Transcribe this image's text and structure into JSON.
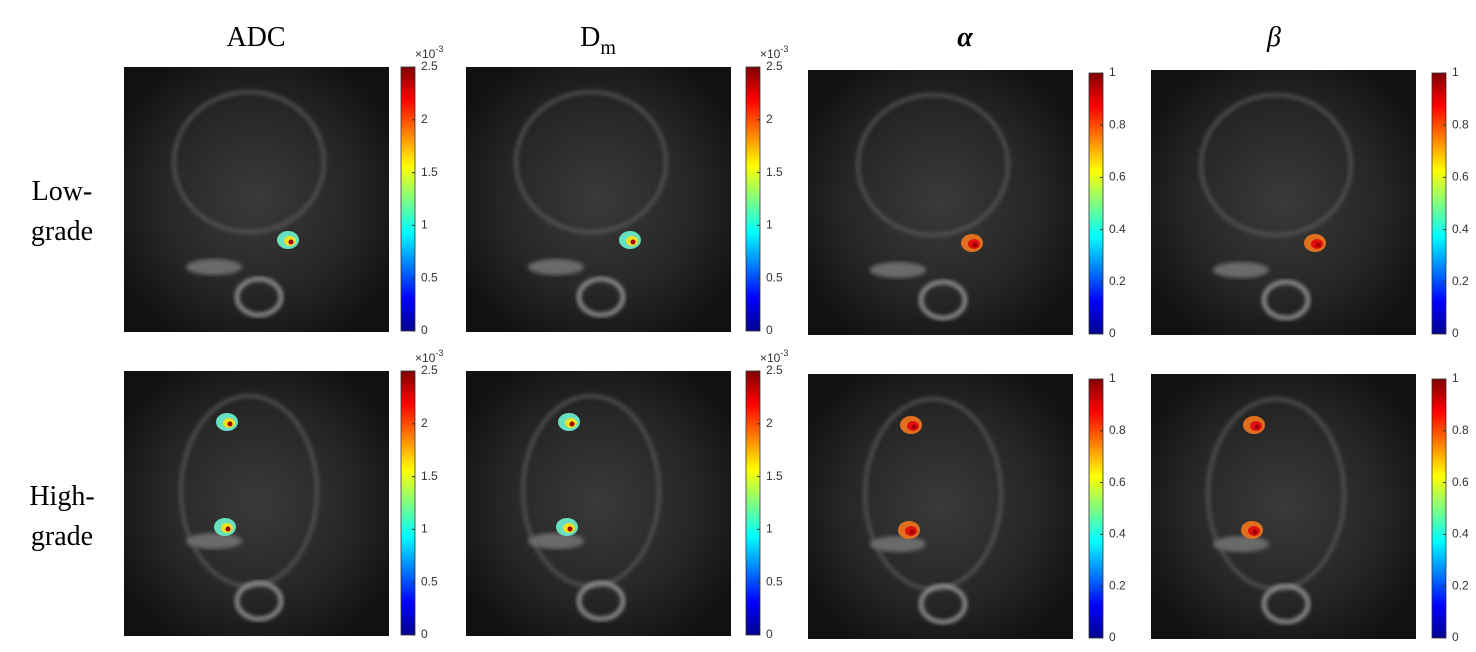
{
  "columns": [
    {
      "label": "ADC",
      "colorbar": {
        "lim": [
          0,
          2.5
        ],
        "ticks": [
          0,
          0.5,
          1,
          1.5,
          2,
          2.5
        ],
        "multiplier": {
          "base": "×10",
          "exponent": "-3"
        }
      }
    },
    {
      "label": "D",
      "subscript": "m",
      "colorbar": {
        "lim": [
          0,
          2.5
        ],
        "ticks": [
          0,
          0.5,
          1,
          1.5,
          2,
          2.5
        ],
        "multiplier": {
          "base": "×10",
          "exponent": "-3"
        }
      }
    },
    {
      "label": "α",
      "colorbar": {
        "lim": [
          0,
          1
        ],
        "ticks": [
          0,
          0.2,
          0.4,
          0.6,
          0.8,
          1
        ]
      }
    },
    {
      "label": "β",
      "colorbar": {
        "lim": [
          0,
          1
        ],
        "ticks": [
          0,
          0.2,
          0.4,
          0.6,
          0.8,
          1
        ]
      }
    }
  ],
  "rows": [
    [
      "Low-",
      "grade"
    ],
    [
      "High-",
      "grade"
    ]
  ]
}
